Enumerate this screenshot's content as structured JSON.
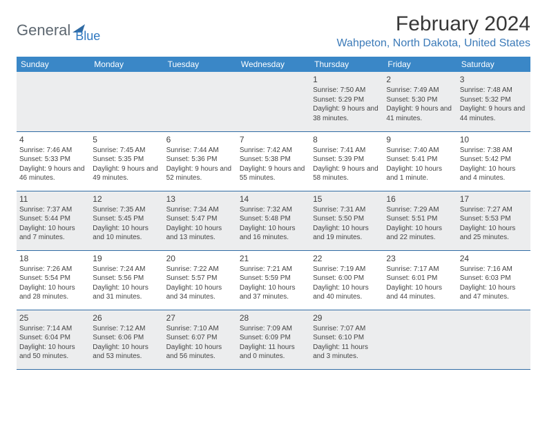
{
  "logo": {
    "text1": "General",
    "text2": "Blue"
  },
  "title": "February 2024",
  "location": "Wahpeton, North Dakota, United States",
  "colors": {
    "header_bg": "#3a87c7",
    "location_color": "#3b7ab8",
    "row_border": "#2f6aa3",
    "shaded_bg": "#ecedee",
    "text": "#333333"
  },
  "daysOfWeek": [
    "Sunday",
    "Monday",
    "Tuesday",
    "Wednesday",
    "Thursday",
    "Friday",
    "Saturday"
  ],
  "weeks": [
    [
      {
        "num": "",
        "sunrise": "",
        "sunset": "",
        "daylight": ""
      },
      {
        "num": "",
        "sunrise": "",
        "sunset": "",
        "daylight": ""
      },
      {
        "num": "",
        "sunrise": "",
        "sunset": "",
        "daylight": ""
      },
      {
        "num": "",
        "sunrise": "",
        "sunset": "",
        "daylight": ""
      },
      {
        "num": "1",
        "sunrise": "Sunrise: 7:50 AM",
        "sunset": "Sunset: 5:29 PM",
        "daylight": "Daylight: 9 hours and 38 minutes."
      },
      {
        "num": "2",
        "sunrise": "Sunrise: 7:49 AM",
        "sunset": "Sunset: 5:30 PM",
        "daylight": "Daylight: 9 hours and 41 minutes."
      },
      {
        "num": "3",
        "sunrise": "Sunrise: 7:48 AM",
        "sunset": "Sunset: 5:32 PM",
        "daylight": "Daylight: 9 hours and 44 minutes."
      }
    ],
    [
      {
        "num": "4",
        "sunrise": "Sunrise: 7:46 AM",
        "sunset": "Sunset: 5:33 PM",
        "daylight": "Daylight: 9 hours and 46 minutes."
      },
      {
        "num": "5",
        "sunrise": "Sunrise: 7:45 AM",
        "sunset": "Sunset: 5:35 PM",
        "daylight": "Daylight: 9 hours and 49 minutes."
      },
      {
        "num": "6",
        "sunrise": "Sunrise: 7:44 AM",
        "sunset": "Sunset: 5:36 PM",
        "daylight": "Daylight: 9 hours and 52 minutes."
      },
      {
        "num": "7",
        "sunrise": "Sunrise: 7:42 AM",
        "sunset": "Sunset: 5:38 PM",
        "daylight": "Daylight: 9 hours and 55 minutes."
      },
      {
        "num": "8",
        "sunrise": "Sunrise: 7:41 AM",
        "sunset": "Sunset: 5:39 PM",
        "daylight": "Daylight: 9 hours and 58 minutes."
      },
      {
        "num": "9",
        "sunrise": "Sunrise: 7:40 AM",
        "sunset": "Sunset: 5:41 PM",
        "daylight": "Daylight: 10 hours and 1 minute."
      },
      {
        "num": "10",
        "sunrise": "Sunrise: 7:38 AM",
        "sunset": "Sunset: 5:42 PM",
        "daylight": "Daylight: 10 hours and 4 minutes."
      }
    ],
    [
      {
        "num": "11",
        "sunrise": "Sunrise: 7:37 AM",
        "sunset": "Sunset: 5:44 PM",
        "daylight": "Daylight: 10 hours and 7 minutes."
      },
      {
        "num": "12",
        "sunrise": "Sunrise: 7:35 AM",
        "sunset": "Sunset: 5:45 PM",
        "daylight": "Daylight: 10 hours and 10 minutes."
      },
      {
        "num": "13",
        "sunrise": "Sunrise: 7:34 AM",
        "sunset": "Sunset: 5:47 PM",
        "daylight": "Daylight: 10 hours and 13 minutes."
      },
      {
        "num": "14",
        "sunrise": "Sunrise: 7:32 AM",
        "sunset": "Sunset: 5:48 PM",
        "daylight": "Daylight: 10 hours and 16 minutes."
      },
      {
        "num": "15",
        "sunrise": "Sunrise: 7:31 AM",
        "sunset": "Sunset: 5:50 PM",
        "daylight": "Daylight: 10 hours and 19 minutes."
      },
      {
        "num": "16",
        "sunrise": "Sunrise: 7:29 AM",
        "sunset": "Sunset: 5:51 PM",
        "daylight": "Daylight: 10 hours and 22 minutes."
      },
      {
        "num": "17",
        "sunrise": "Sunrise: 7:27 AM",
        "sunset": "Sunset: 5:53 PM",
        "daylight": "Daylight: 10 hours and 25 minutes."
      }
    ],
    [
      {
        "num": "18",
        "sunrise": "Sunrise: 7:26 AM",
        "sunset": "Sunset: 5:54 PM",
        "daylight": "Daylight: 10 hours and 28 minutes."
      },
      {
        "num": "19",
        "sunrise": "Sunrise: 7:24 AM",
        "sunset": "Sunset: 5:56 PM",
        "daylight": "Daylight: 10 hours and 31 minutes."
      },
      {
        "num": "20",
        "sunrise": "Sunrise: 7:22 AM",
        "sunset": "Sunset: 5:57 PM",
        "daylight": "Daylight: 10 hours and 34 minutes."
      },
      {
        "num": "21",
        "sunrise": "Sunrise: 7:21 AM",
        "sunset": "Sunset: 5:59 PM",
        "daylight": "Daylight: 10 hours and 37 minutes."
      },
      {
        "num": "22",
        "sunrise": "Sunrise: 7:19 AM",
        "sunset": "Sunset: 6:00 PM",
        "daylight": "Daylight: 10 hours and 40 minutes."
      },
      {
        "num": "23",
        "sunrise": "Sunrise: 7:17 AM",
        "sunset": "Sunset: 6:01 PM",
        "daylight": "Daylight: 10 hours and 44 minutes."
      },
      {
        "num": "24",
        "sunrise": "Sunrise: 7:16 AM",
        "sunset": "Sunset: 6:03 PM",
        "daylight": "Daylight: 10 hours and 47 minutes."
      }
    ],
    [
      {
        "num": "25",
        "sunrise": "Sunrise: 7:14 AM",
        "sunset": "Sunset: 6:04 PM",
        "daylight": "Daylight: 10 hours and 50 minutes."
      },
      {
        "num": "26",
        "sunrise": "Sunrise: 7:12 AM",
        "sunset": "Sunset: 6:06 PM",
        "daylight": "Daylight: 10 hours and 53 minutes."
      },
      {
        "num": "27",
        "sunrise": "Sunrise: 7:10 AM",
        "sunset": "Sunset: 6:07 PM",
        "daylight": "Daylight: 10 hours and 56 minutes."
      },
      {
        "num": "28",
        "sunrise": "Sunrise: 7:09 AM",
        "sunset": "Sunset: 6:09 PM",
        "daylight": "Daylight: 11 hours and 0 minutes."
      },
      {
        "num": "29",
        "sunrise": "Sunrise: 7:07 AM",
        "sunset": "Sunset: 6:10 PM",
        "daylight": "Daylight: 11 hours and 3 minutes."
      },
      {
        "num": "",
        "sunrise": "",
        "sunset": "",
        "daylight": ""
      },
      {
        "num": "",
        "sunrise": "",
        "sunset": "",
        "daylight": ""
      }
    ]
  ]
}
